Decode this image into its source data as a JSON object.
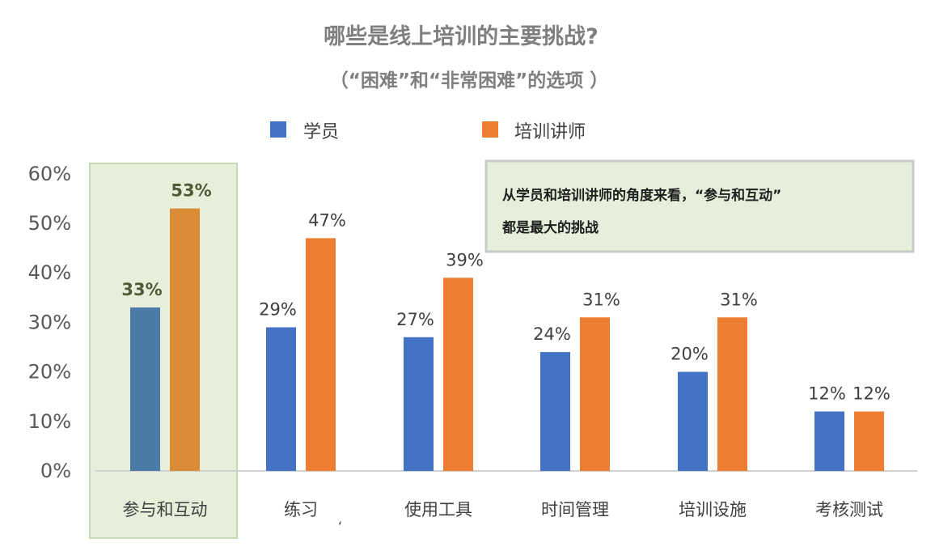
{
  "chart_data": {
    "type": "bar",
    "title": "哪些是线上培训的主要挑战?",
    "subtitle": "（“困难”和“非常困难”的选项 ）",
    "categories": [
      "参与和互动",
      "练习",
      "使用工具",
      "时间管理",
      "培训设施",
      "考核测试"
    ],
    "series": [
      {
        "name": "学员",
        "values": [
          33,
          29,
          27,
          24,
          20,
          12
        ],
        "color": "#4472c4"
      },
      {
        "name": "培训讲师",
        "values": [
          53,
          47,
          39,
          31,
          31,
          12
        ],
        "color": "#ed7d31"
      }
    ],
    "y_ticks": [
      "0%",
      "10%",
      "20%",
      "30%",
      "40%",
      "50%",
      "60%"
    ],
    "ylim": [
      0,
      60
    ],
    "unit": "%",
    "legend_position": "top",
    "grid": false,
    "highlight": {
      "category": "参与和互动",
      "colors": [
        "#4a7aa6",
        "#d98b36"
      ],
      "background": "#e5efd9",
      "border": "#c5dab0"
    },
    "annotation": {
      "lines": [
        "从学员和培训讲师的角度来看，“参与和互动”",
        "都是最大的挑战"
      ],
      "background": "#e5efd9",
      "border": "#c9c9c9"
    },
    "stray_mark": "‘"
  }
}
